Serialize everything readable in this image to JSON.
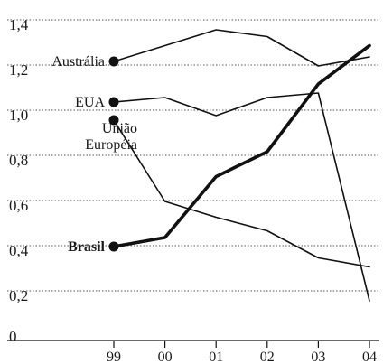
{
  "chart_data": {
    "type": "line",
    "categories": [
      "99",
      "00",
      "01",
      "02",
      "03",
      "04"
    ],
    "ylim": [
      0,
      1.4
    ],
    "yticks": [
      "0",
      "0,2",
      "0,4",
      "0,6",
      "0,8",
      "1,0",
      "1,2",
      "1,4"
    ],
    "grid": "horizontal dotted lines",
    "legend": "direct labels at left, at start of each line",
    "series": [
      {
        "name": "Austrália",
        "values": [
          1.26,
          1.33,
          1.4,
          1.37,
          1.24,
          1.28
        ],
        "bold": false
      },
      {
        "name": "EUA",
        "values": [
          1.08,
          1.1,
          1.02,
          1.1,
          1.12,
          0.2
        ],
        "bold": false
      },
      {
        "name": "União Européia",
        "label_lines": [
          "União",
          "Européia"
        ],
        "values": [
          1.0,
          0.64,
          0.57,
          0.51,
          0.39,
          0.35
        ],
        "bold": false
      },
      {
        "name": "Brasil",
        "values": [
          0.44,
          0.48,
          0.75,
          0.86,
          1.16,
          1.33
        ],
        "bold": true
      }
    ]
  }
}
